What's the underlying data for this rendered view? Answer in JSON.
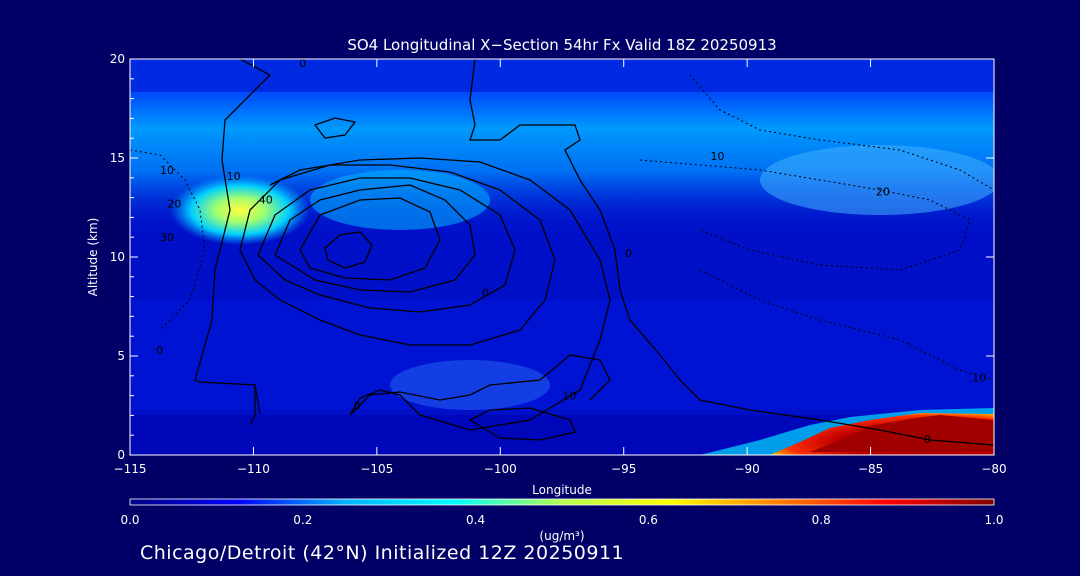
{
  "chart_data": {
    "type": "heatmap",
    "title": "SO4 Longitudinal X−Section 54hr  Fx Valid 18Z 20250913",
    "xlabel": "Longitude",
    "ylabel": "Altitude (km)",
    "xlim": [
      -115,
      -80
    ],
    "ylim": [
      0,
      20
    ],
    "x_ticks": [
      -115,
      -110,
      -105,
      -100,
      -95,
      -90,
      -85,
      -80
    ],
    "x_tick_labels": [
      "−115",
      "−110",
      "−105",
      "−100",
      "−95",
      "−90",
      "−85",
      "−80"
    ],
    "y_ticks": [
      0,
      5,
      10,
      15,
      20
    ],
    "y_tick_labels": [
      "0",
      "5",
      "10",
      "15",
      "20"
    ],
    "colorbar": {
      "min": 0.0,
      "max": 1.0,
      "ticks": [
        0.0,
        0.2,
        0.4,
        0.6,
        0.8,
        1.0
      ],
      "tick_labels": [
        "0.0",
        "0.2",
        "0.4",
        "0.6",
        "0.8",
        "1.0"
      ],
      "unit_label": "(ug/m³)",
      "colors": [
        "#000080",
        "#0000ff",
        "#00b4ff",
        "#00ffff",
        "#b4ff50",
        "#ffff00",
        "#ff8000",
        "#ff0000",
        "#800000"
      ]
    },
    "concentration_features": [
      {
        "name": "upper-level band",
        "lon": [
          -115,
          -80
        ],
        "alt": [
          13,
          19
        ],
        "value": 0.35
      },
      {
        "name": "west peak",
        "lon": -113,
        "alt": 12.5,
        "value": 0.62
      },
      {
        "name": "eastern surface plume",
        "lon": [
          -87,
          -80
        ],
        "alt": [
          0,
          1.8
        ],
        "value": 1.0
      }
    ],
    "contour_labels": [
      {
        "text": "10",
        "lon": -113.5,
        "alt": 14.2
      },
      {
        "text": "20",
        "lon": -113.2,
        "alt": 12.5
      },
      {
        "text": "30",
        "lon": -113.5,
        "alt": 10.8
      },
      {
        "text": "10",
        "lon": -110.8,
        "alt": 13.9
      },
      {
        "text": "40",
        "lon": -109.5,
        "alt": 12.7
      },
      {
        "text": "0",
        "lon": -108,
        "alt": 19.6
      },
      {
        "text": "0",
        "lon": -113.8,
        "alt": 5.1
      },
      {
        "text": "0",
        "lon": -105.8,
        "alt": 2.3
      },
      {
        "text": "10",
        "lon": -97.2,
        "alt": 2.8
      },
      {
        "text": "0",
        "lon": -100.6,
        "alt": 8
      },
      {
        "text": "0",
        "lon": -94.8,
        "alt": 10
      },
      {
        "text": "10",
        "lon": -91.2,
        "alt": 14.9
      },
      {
        "text": "20",
        "lon": -84.5,
        "alt": 13.1
      },
      {
        "text": "10",
        "lon": -80.6,
        "alt": 3.7
      },
      {
        "text": "0",
        "lon": -82.7,
        "alt": 0.6
      }
    ]
  },
  "footer": "Chicago/Detroit (42°N) Initialized 12Z 20250911"
}
